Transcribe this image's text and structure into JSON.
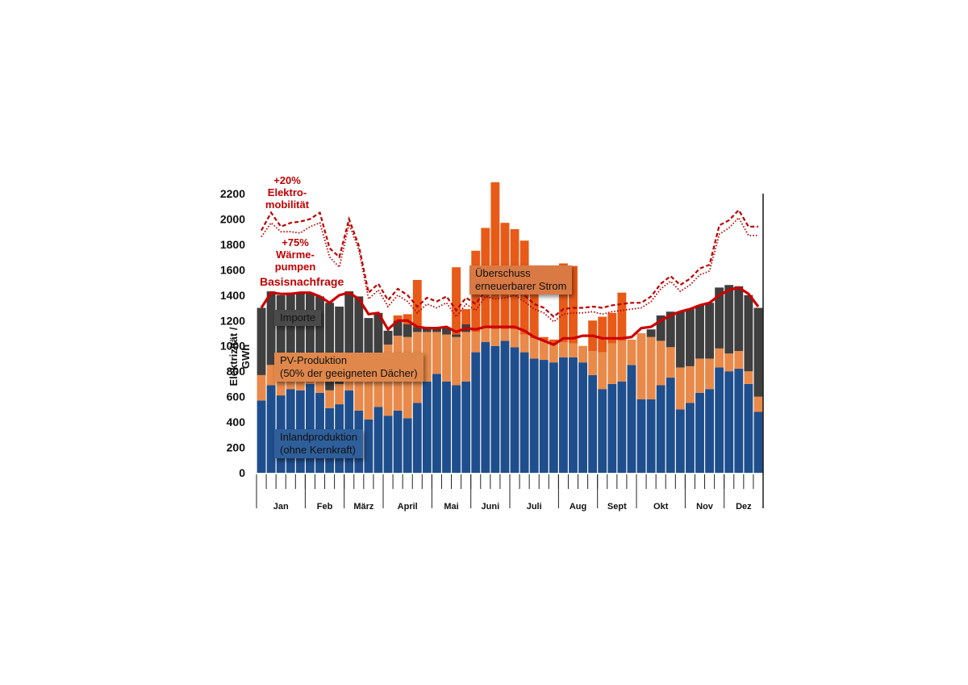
{
  "chart_data": {
    "type": "bar",
    "stacked": true,
    "ylabel": "Elektrizität / GWh",
    "ylim": [
      0,
      2200
    ],
    "yticks": [
      0,
      200,
      400,
      600,
      800,
      1000,
      1200,
      1400,
      1600,
      1800,
      2000,
      2200
    ],
    "months": [
      {
        "label": "Jan",
        "weeks": 5
      },
      {
        "label": "Feb",
        "weeks": 4
      },
      {
        "label": "März",
        "weeks": 4
      },
      {
        "label": "April",
        "weeks": 5
      },
      {
        "label": "Mai",
        "weeks": 4
      },
      {
        "label": "Juni",
        "weeks": 4
      },
      {
        "label": "Juli",
        "weeks": 5
      },
      {
        "label": "Aug",
        "weeks": 4
      },
      {
        "label": "Sept",
        "weeks": 4
      },
      {
        "label": "Okt",
        "weeks": 5
      },
      {
        "label": "Nov",
        "weeks": 4
      },
      {
        "label": "Dez",
        "weeks": 4
      }
    ],
    "series": [
      {
        "name": "Inlandproduktion (ohne Kernkraft)",
        "color": "#1f4e8c",
        "values": [
          570,
          690,
          610,
          660,
          650,
          700,
          630,
          510,
          540,
          650,
          490,
          420,
          520,
          450,
          490,
          430,
          550,
          720,
          780,
          720,
          690,
          720,
          950,
          1030,
          1000,
          1040,
          990,
          950,
          900,
          890,
          870,
          910,
          910,
          870,
          770,
          660,
          700,
          720,
          850,
          580,
          580,
          690,
          750,
          500,
          550,
          630,
          660,
          830,
          800,
          820,
          700,
          480
        ]
      },
      {
        "name": "PV-Produktion (50% der geeigneten Dächer)",
        "color": "#e98a4a",
        "values": [
          200,
          160,
          190,
          170,
          170,
          160,
          120,
          140,
          160,
          150,
          290,
          330,
          360,
          560,
          590,
          640,
          560,
          390,
          330,
          370,
          380,
          390,
          160,
          110,
          130,
          90,
          140,
          140,
          160,
          150,
          140,
          120,
          110,
          130,
          190,
          290,
          320,
          320,
          200,
          520,
          490,
          350,
          240,
          330,
          290,
          270,
          240,
          150,
          140,
          140,
          100,
          120
        ]
      },
      {
        "name": "Importe",
        "color": "#3f3f3f",
        "values": [
          530,
          580,
          600,
          590,
          600,
          560,
          640,
          690,
          610,
          630,
          610,
          470,
          380,
          110,
          120,
          100,
          40,
          40,
          40,
          50,
          20,
          60,
          0,
          0,
          0,
          0,
          0,
          0,
          0,
          0,
          0,
          0,
          0,
          0,
          0,
          0,
          0,
          0,
          0,
          0,
          60,
          200,
          280,
          440,
          450,
          420,
          440,
          480,
          540,
          510,
          600,
          700
        ]
      },
      {
        "name": "Überschuss erneuerbarer Strom",
        "color": "#e85a18",
        "values": [
          0,
          0,
          0,
          0,
          0,
          0,
          0,
          0,
          0,
          0,
          0,
          0,
          0,
          0,
          40,
          80,
          370,
          0,
          0,
          0,
          530,
          120,
          640,
          790,
          1160,
          840,
          790,
          740,
          550,
          30,
          40,
          620,
          610,
          0,
          240,
          280,
          240,
          380,
          0,
          0,
          0,
          0,
          0,
          0,
          0,
          0,
          0,
          0,
          0,
          0,
          0,
          0
        ]
      }
    ],
    "lines": [
      {
        "name": "Basisnachfrage",
        "color": "#cc0000",
        "style": "solid",
        "values": [
          1300,
          1420,
          1410,
          1410,
          1420,
          1420,
          1390,
          1340,
          1400,
          1420,
          1370,
          1250,
          1260,
          1130,
          1200,
          1200,
          1150,
          1140,
          1140,
          1150,
          1110,
          1140,
          1130,
          1150,
          1150,
          1150,
          1150,
          1120,
          1070,
          1040,
          1010,
          1060,
          1060,
          1080,
          1080,
          1060,
          1060,
          1060,
          1070,
          1140,
          1150,
          1200,
          1240,
          1270,
          1290,
          1320,
          1340,
          1400,
          1440,
          1460,
          1410,
          1310
        ]
      },
      {
        "name": "+20% Elektromobilität",
        "color": "#bb0000",
        "style": "dashed",
        "values": [
          1910,
          2050,
          1940,
          1970,
          1980,
          2000,
          2050,
          1770,
          1700,
          2000,
          1790,
          1420,
          1490,
          1360,
          1450,
          1400,
          1310,
          1380,
          1350,
          1390,
          1280,
          1380,
          1330,
          1440,
          1420,
          1430,
          1460,
          1400,
          1330,
          1300,
          1230,
          1290,
          1300,
          1300,
          1310,
          1300,
          1320,
          1330,
          1340,
          1340,
          1390,
          1490,
          1550,
          1480,
          1530,
          1610,
          1640,
          1950,
          1990,
          2070,
          1940,
          1940
        ]
      },
      {
        "name": "+75% Wärmepumpen",
        "color": "#bb0000",
        "style": "dotted",
        "values": [
          1860,
          1970,
          1900,
          1900,
          1890,
          1940,
          1970,
          1700,
          1620,
          1960,
          1760,
          1370,
          1440,
          1310,
          1400,
          1350,
          1260,
          1330,
          1300,
          1340,
          1230,
          1330,
          1280,
          1390,
          1370,
          1380,
          1400,
          1350,
          1290,
          1260,
          1190,
          1250,
          1260,
          1260,
          1270,
          1250,
          1270,
          1280,
          1290,
          1300,
          1350,
          1450,
          1510,
          1430,
          1480,
          1560,
          1590,
          1880,
          1930,
          2010,
          1870,
          1870
        ]
      }
    ],
    "annotations": {
      "importe": "Importe",
      "pv_line1": "PV-Produktion",
      "pv_line2": "(50% der geeigneten Dächer)",
      "inland_line1": "Inlandproduktion",
      "inland_line2": "(ohne Kernkraft)",
      "surplus_line1": "Überschuss",
      "surplus_line2": "erneuerbarer Strom",
      "basis": "Basisnachfrage",
      "emob_line1": "+20%",
      "emob_line2": "Elektro-",
      "emob_line3": "mobilität",
      "waerme_line1": "+75%",
      "waerme_line2": "Wärme-",
      "waerme_line3": "pumpen"
    }
  }
}
